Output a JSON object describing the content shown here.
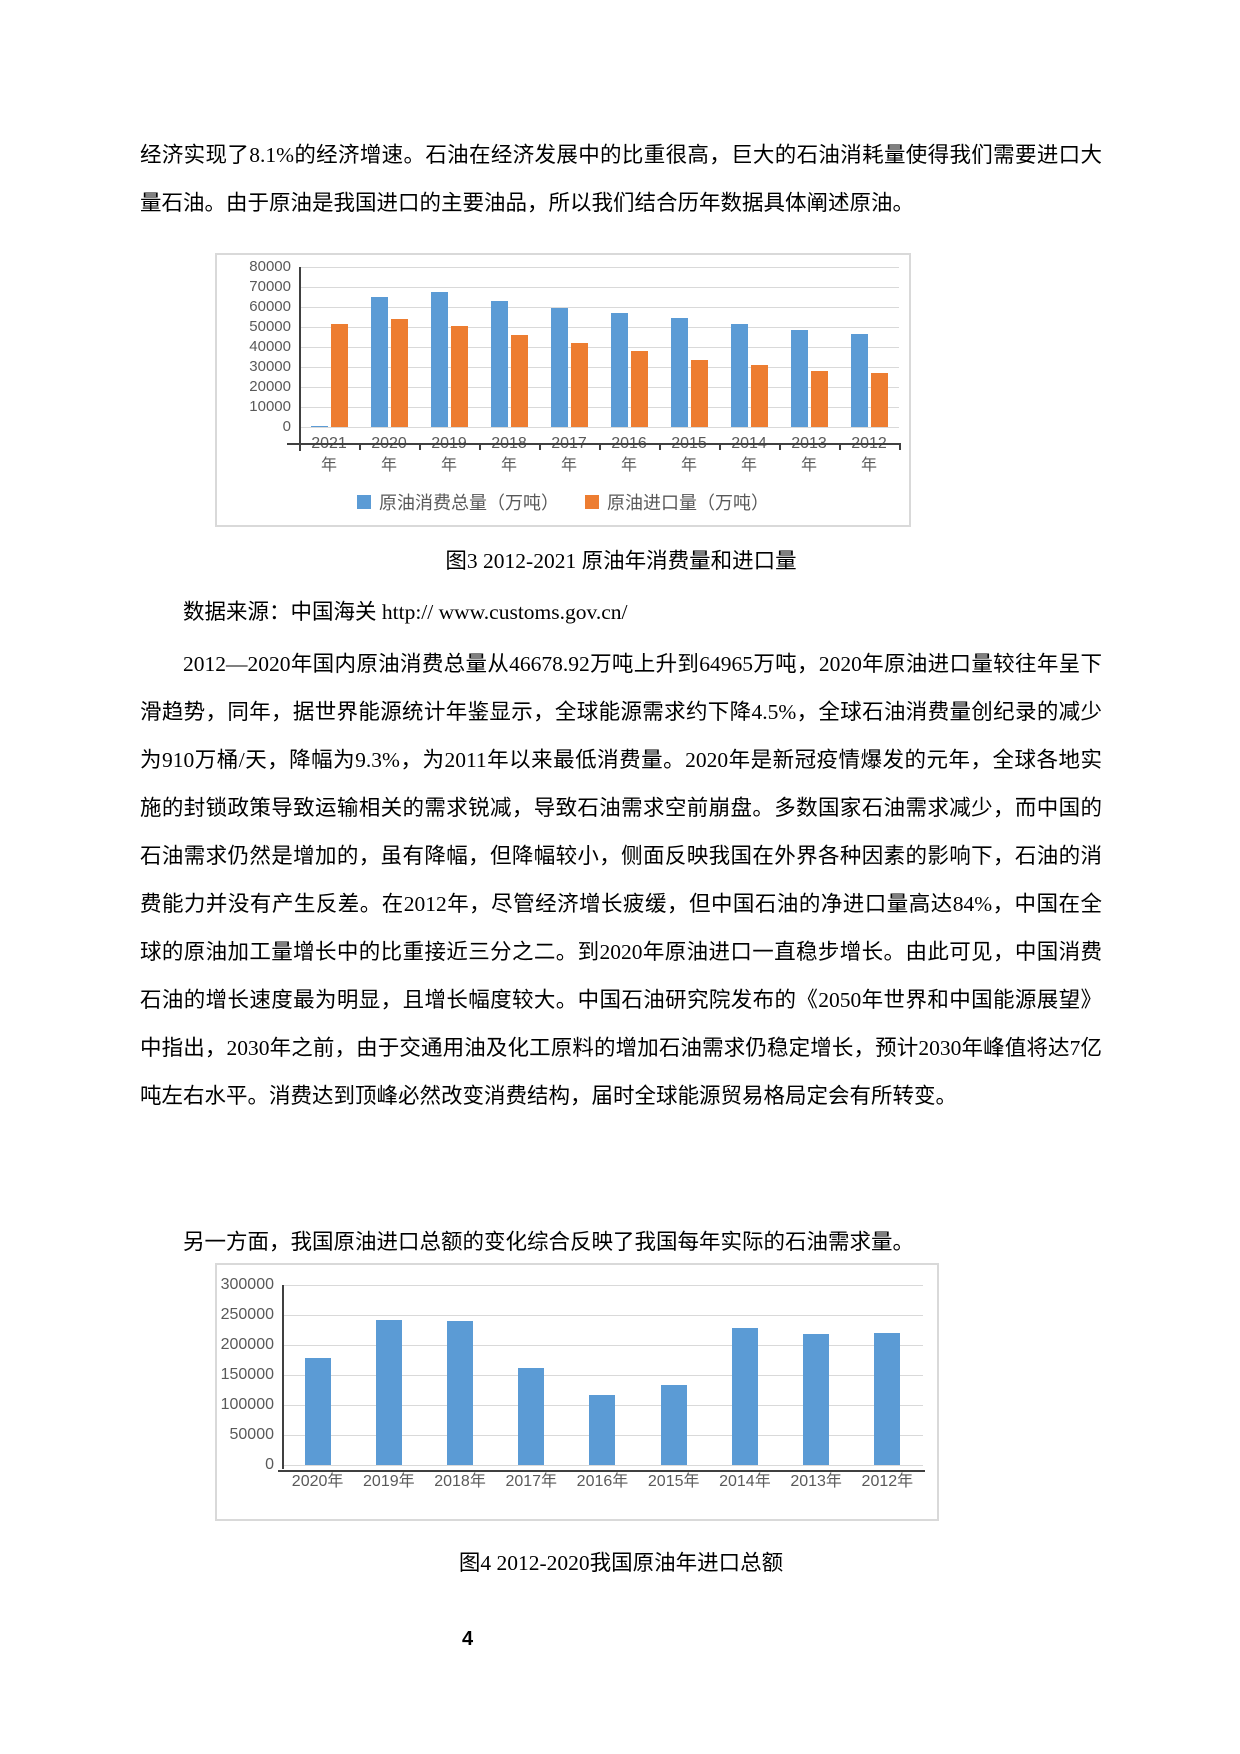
{
  "document": {
    "paragraph_top": "经济实现了8.1%的经济增速。石油在经济发展中的比重很高，巨大的石油消耗量使得我们需要进口大量石油。由于原油是我国进口的主要油品，所以我们结合历年数据具体阐述原油。",
    "figure3": {
      "caption": "图3 2012-2021 原油年消费量和进口量",
      "source": "数据来源：中国海关 http:// www.customs.gov.cn/"
    },
    "paragraph_main": "2012—2020年国内原油消费总量从46678.92万吨上升到64965万吨，2020年原油进口量较往年呈下滑趋势，同年，据世界能源统计年鉴显示，全球能源需求约下降4.5%，全球石油消费量创纪录的减少为910万桶/天，降幅为9.3%，为2011年以来最低消费量。2020年是新冠疫情爆发的元年，全球各地实施的封锁政策导致运输相关的需求锐减，导致石油需求空前崩盘。多数国家石油需求减少，而中国的石油需求仍然是增加的，虽有降幅，但降幅较小，侧面反映我国在外界各种因素的影响下，石油的消费能力并没有产生反差。在2012年，尽管经济增长疲缓，但中国石油的净进口量高达84%，中国在全球的原油加工量增长中的比重接近三分之二。到2020年原油进口一直稳步增长。由此可见，中国消费石油的增长速度最为明显，且增长幅度较大。中国石油研究院发布的《2050年世界和中国能源展望》中指出，2030年之前，由于交通用油及化工原料的增加石油需求仍稳定增长，预计2030年峰值将达7亿吨左右水平。消费达到顶峰必然改变消费结构，届时全球能源贸易格局定会有所转变。",
    "paragraph_another": "另一方面，我国原油进口总额的变化综合反映了我国每年实际的石油需求量。",
    "figure4": {
      "caption": "图4 2012-2020我国原油年进口总额"
    },
    "page_number": "4"
  },
  "chart_data": [
    {
      "type": "bar",
      "title": "图3 2012-2021 原油年消费量和进口量",
      "categories": [
        "2021年",
        "2020年",
        "2019年",
        "2018年",
        "2017年",
        "2016年",
        "2015年",
        "2014年",
        "2013年",
        "2012年"
      ],
      "series": [
        {
          "name": "原油消费总量（万吨）",
          "color": "#5B9BD5",
          "values": [
            400,
            64965,
            67400,
            63000,
            59400,
            57200,
            54600,
            51500,
            48700,
            46679
          ]
        },
        {
          "name": "原油进口量（万吨）",
          "color": "#ED7D31",
          "values": [
            51300,
            54200,
            50600,
            46200,
            41900,
            38100,
            33600,
            31000,
            28200,
            27100
          ]
        }
      ],
      "xlabel": "",
      "ylabel": "",
      "ylim": [
        0,
        80000
      ],
      "ytick_step": 10000,
      "grid": true,
      "legend_position": "bottom",
      "colors": {
        "grid": "#D9D9D9",
        "axis": "#404040",
        "labels": "#595959"
      }
    },
    {
      "type": "bar",
      "title": "图4 2012-2020我国原油年进口总额",
      "categories": [
        "2020年",
        "2019年",
        "2018年",
        "2017年",
        "2016年",
        "2015年",
        "2014年",
        "2013年",
        "2012年"
      ],
      "series": [
        {
          "name": "原油年进口总额",
          "color": "#5B9BD5",
          "values": [
            178000,
            242000,
            240000,
            161000,
            116000,
            133000,
            228000,
            219000,
            220000
          ]
        }
      ],
      "xlabel": "",
      "ylabel": "",
      "ylim": [
        0,
        300000
      ],
      "ytick_step": 50000,
      "grid": true,
      "legend_position": "none",
      "colors": {
        "grid": "#D9D9D9",
        "axis": "#404040",
        "labels": "#595959"
      }
    }
  ]
}
